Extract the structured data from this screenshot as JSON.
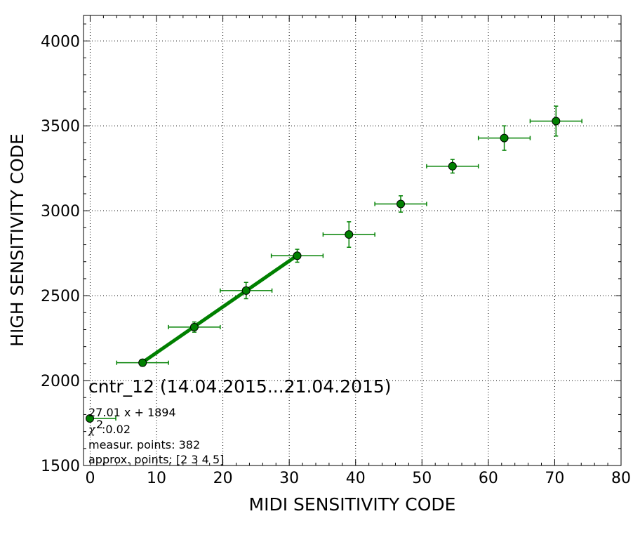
{
  "chart_data": {
    "type": "scatter",
    "title": "cntr_12 (14.04.2015...21.04.2015)",
    "xlabel": "MIDI SENSITIVITY CODE",
    "ylabel": "HIGH SENSITIVITY CODE",
    "xlim": [
      -1,
      80
    ],
    "ylim": [
      1500,
      4150
    ],
    "xticks": [
      0,
      10,
      20,
      30,
      40,
      50,
      60,
      70,
      80
    ],
    "yticks": [
      1500,
      2000,
      2500,
      3000,
      3500,
      4000
    ],
    "grid": true,
    "colors": {
      "series": "#008000",
      "marker_edge": "#000000"
    },
    "series": [
      {
        "x": [
          7.9,
          15.7,
          23.5,
          31.2,
          39.0,
          46.8,
          54.6,
          62.4,
          70.2
        ],
        "y": [
          2105,
          2315,
          2530,
          2735,
          2860,
          3040,
          3262,
          3428,
          3528
        ],
        "x_err": [
          3.9,
          3.9,
          3.9,
          3.9,
          3.9,
          3.9,
          3.9,
          3.9,
          3.9
        ],
        "y_err": [
          20,
          30,
          48,
          38,
          75,
          48,
          40,
          72,
          88
        ]
      }
    ],
    "fit": {
      "x_start": 7.9,
      "x_end": 31.2,
      "slope": 27.01,
      "intercept": 1894
    },
    "legend": {
      "position": "lower-left",
      "fit_label": "27.01 x + 1894",
      "chi_symbol": "χ",
      "chi_sup": "2",
      "chi_value": " :0.02",
      "points_label": "measur. points: 382",
      "approx_label": "approx. points: [2 3 4 5]"
    }
  }
}
